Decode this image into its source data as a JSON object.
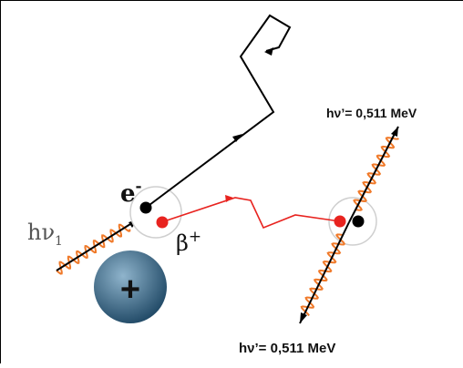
{
  "colors": {
    "electron": "#000000",
    "positron": "#e8231f",
    "photon_wave": "#f07a2a",
    "nucleus_dark": "#1d4663",
    "nucleus_light": "#8fb4cc",
    "atom_ring": "#cfcfcf"
  },
  "labels": {
    "incident_photon": "hν",
    "incident_photon_sub": "1",
    "electron": "e",
    "electron_sup": "-",
    "positron": "β",
    "positron_sup": "+",
    "nucleus_sign": "+",
    "annihilation_photon_top": "hν’= 0,511 MeV",
    "annihilation_photon_bottom": "hν’= 0,511 MeV"
  },
  "icons": {
    "nucleus": "nucleus-icon",
    "electron": "electron-dot-icon",
    "positron": "positron-dot-icon"
  }
}
